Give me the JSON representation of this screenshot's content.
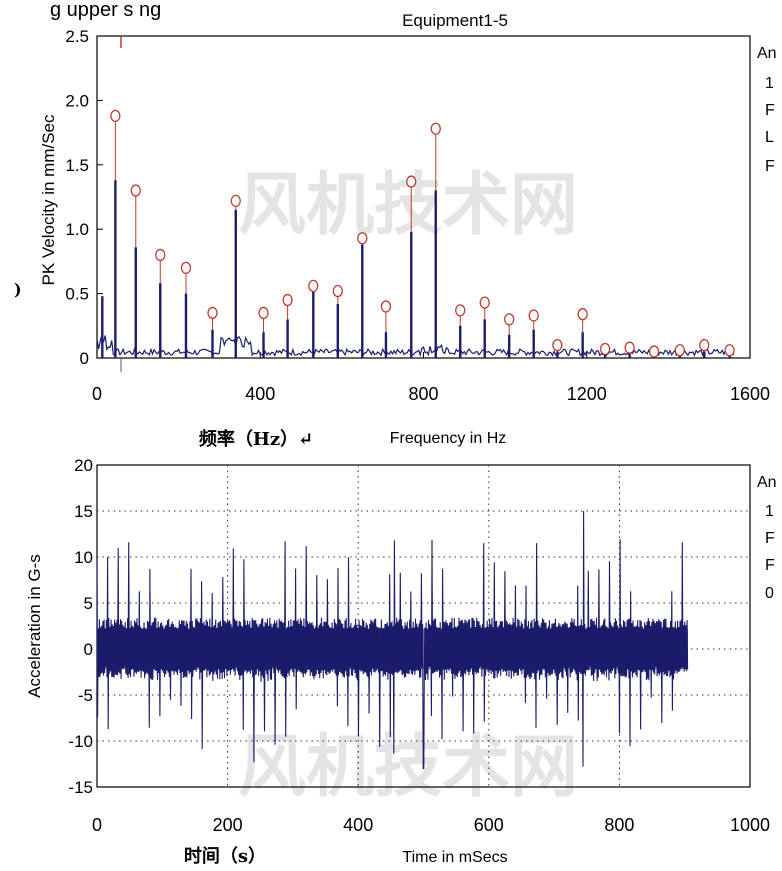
{
  "header_text": "g upper s ng",
  "watermark": "风机技术网",
  "colors": {
    "trace": "#1c1c6b",
    "marker": "#c0392b",
    "axis": "#000000"
  },
  "chart_data": [
    {
      "type": "line",
      "title": "Equipment1-5",
      "ylabel": "PK Velocity in mm/Sec",
      "xlabel": "Frequency in Hz",
      "xlabel_cn": "频率（Hz）↵",
      "xlim": [
        0,
        1600
      ],
      "ylim": [
        0,
        2.5
      ],
      "xticks": [
        "0",
        "400",
        "800",
        "1200",
        "1600"
      ],
      "yticks": [
        "0",
        "0.5",
        "1.0",
        "1.5",
        "2.0",
        "2.5"
      ],
      "side_labels": [
        "An",
        "1",
        "F",
        "L",
        "F"
      ],
      "left_mark": ")",
      "peaks": [
        {
          "x": 13,
          "y": 0.48
        },
        {
          "x": 45,
          "y": 1.38,
          "marker": 1.88
        },
        {
          "x": 95,
          "y": 0.86,
          "marker": 1.3
        },
        {
          "x": 155,
          "y": 0.58,
          "marker": 0.8
        },
        {
          "x": 218,
          "y": 0.5,
          "marker": 0.7
        },
        {
          "x": 283,
          "y": 0.22,
          "marker": 0.35
        },
        {
          "x": 340,
          "y": 1.15,
          "marker": 1.22
        },
        {
          "x": 408,
          "y": 0.2,
          "marker": 0.35
        },
        {
          "x": 467,
          "y": 0.3,
          "marker": 0.45
        },
        {
          "x": 530,
          "y": 0.52,
          "marker": 0.56
        },
        {
          "x": 590,
          "y": 0.42,
          "marker": 0.52
        },
        {
          "x": 650,
          "y": 0.88,
          "marker": 0.93
        },
        {
          "x": 708,
          "y": 0.2,
          "marker": 0.4
        },
        {
          "x": 770,
          "y": 0.98,
          "marker": 1.37
        },
        {
          "x": 830,
          "y": 1.3,
          "marker": 1.78
        },
        {
          "x": 890,
          "y": 0.25,
          "marker": 0.37
        },
        {
          "x": 950,
          "y": 0.3,
          "marker": 0.43
        },
        {
          "x": 1010,
          "y": 0.18,
          "marker": 0.3
        },
        {
          "x": 1070,
          "y": 0.22,
          "marker": 0.33
        },
        {
          "x": 1128,
          "y": 0.05,
          "marker": 0.1
        },
        {
          "x": 1190,
          "y": 0.2,
          "marker": 0.34
        },
        {
          "x": 1245,
          "y": 0.03,
          "marker": 0.07
        },
        {
          "x": 1305,
          "y": 0.03,
          "marker": 0.08
        },
        {
          "x": 1365,
          "y": 0.02,
          "marker": 0.05
        },
        {
          "x": 1428,
          "y": 0.03,
          "marker": 0.06
        },
        {
          "x": 1488,
          "y": 0.05,
          "marker": 0.1
        },
        {
          "x": 1550,
          "y": 0.03,
          "marker": 0.06
        }
      ]
    },
    {
      "type": "line",
      "title": "",
      "ylabel": "Acceleration in G-s",
      "xlabel": "Time in mSecs",
      "xlabel_cn": "时间（s）",
      "xlim": [
        0,
        1000
      ],
      "ylim": [
        -15,
        20
      ],
      "xticks": [
        "0",
        "200",
        "400",
        "600",
        "800",
        "1000"
      ],
      "yticks": [
        "-15",
        "-10",
        "-5",
        "0",
        "5",
        "10",
        "15",
        "20"
      ],
      "grid": "dotted",
      "side_labels": [
        "An",
        "1",
        "F",
        "F",
        "0"
      ],
      "signal_end": 905,
      "envelope_peak_max": 15,
      "envelope_peak_min": -13
    }
  ]
}
